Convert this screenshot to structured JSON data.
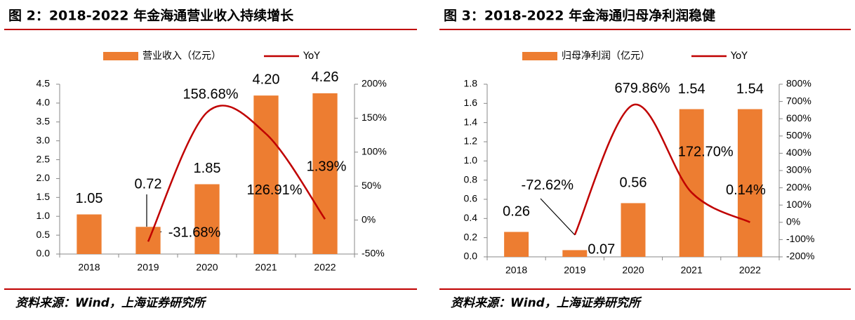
{
  "chart_data": [
    {
      "type": "combo",
      "title": "图 2：2018-2022 年金海通营业收入持续增长",
      "source": "资料来源：Wind，上海证券研究所",
      "categories": [
        "2018",
        "2019",
        "2020",
        "2021",
        "2022"
      ],
      "series": [
        {
          "name": "营业收入（亿元）",
          "type": "bar",
          "color": "#ED7D31",
          "values": [
            1.05,
            0.72,
            1.85,
            4.2,
            4.26
          ],
          "value_labels": [
            "1.05",
            "0.72",
            "1.85",
            "4.20",
            "4.26"
          ]
        },
        {
          "name": "YoY",
          "type": "line",
          "axis": "y2",
          "color": "#C00000",
          "values": [
            null,
            -31.68,
            158.68,
            126.91,
            1.39
          ],
          "value_labels": [
            null,
            "-31.68%",
            "158.68%",
            "126.91%",
            "1.39%"
          ]
        }
      ],
      "ylim": [
        0,
        4.5
      ],
      "yticks": [
        {
          "value": 0,
          "label": "0.0"
        },
        0.5,
        {
          "value": 1,
          "label": "1.0"
        },
        1.5,
        {
          "value": 2,
          "label": "2.0"
        },
        2.5,
        {
          "value": 3,
          "label": "3.0"
        },
        3.5,
        {
          "value": 4,
          "label": "4.0"
        },
        4.5
      ],
      "y2lim": [
        -50,
        200
      ],
      "y2ticks": [
        {
          "value": -50,
          "label": "-50%"
        },
        {
          "value": 0,
          "label": "0%"
        },
        {
          "value": 50,
          "label": "50%"
        },
        {
          "value": 100,
          "label": "100%"
        },
        {
          "value": 150,
          "label": "150%"
        },
        {
          "value": 200,
          "label": "200%"
        }
      ]
    },
    {
      "type": "combo",
      "title": "图 3：2018-2022 年金海通归母净利润稳健",
      "source": "资料来源：Wind，上海证券研究所",
      "categories": [
        "2018",
        "2019",
        "2020",
        "2021",
        "2022"
      ],
      "series": [
        {
          "name": "归母净利润（亿元）",
          "type": "bar",
          "color": "#ED7D31",
          "values": [
            0.26,
            0.07,
            0.56,
            1.54,
            1.54
          ],
          "value_labels": [
            "0.26",
            "0.07",
            "0.56",
            "1.54",
            "1.54"
          ]
        },
        {
          "name": "YoY",
          "type": "line",
          "axis": "y2",
          "color": "#C00000",
          "values": [
            null,
            -72.62,
            679.86,
            172.7,
            0.14
          ],
          "value_labels": [
            null,
            "-72.62%",
            "679.86%",
            "172.70%",
            "0.14%"
          ]
        }
      ],
      "ylim": [
        0,
        1.8
      ],
      "yticks": [
        {
          "value": 0,
          "label": "0.0"
        },
        0.2,
        0.4,
        0.6,
        0.8,
        {
          "value": 1,
          "label": "1.0"
        },
        1.2,
        1.4,
        1.6,
        1.8
      ],
      "y2lim": [
        -200,
        800
      ],
      "y2ticks": [
        {
          "value": -200,
          "label": "-200%"
        },
        {
          "value": -100,
          "label": "-100%"
        },
        {
          "value": 0,
          "label": "0%"
        },
        {
          "value": 100,
          "label": "100%"
        },
        {
          "value": 200,
          "label": "200%"
        },
        {
          "value": 300,
          "label": "300%"
        },
        {
          "value": 400,
          "label": "400%"
        },
        {
          "value": 500,
          "label": "500%"
        },
        {
          "value": 600,
          "label": "600%"
        },
        {
          "value": 700,
          "label": "700%"
        },
        {
          "value": 800,
          "label": "800%"
        }
      ]
    }
  ]
}
